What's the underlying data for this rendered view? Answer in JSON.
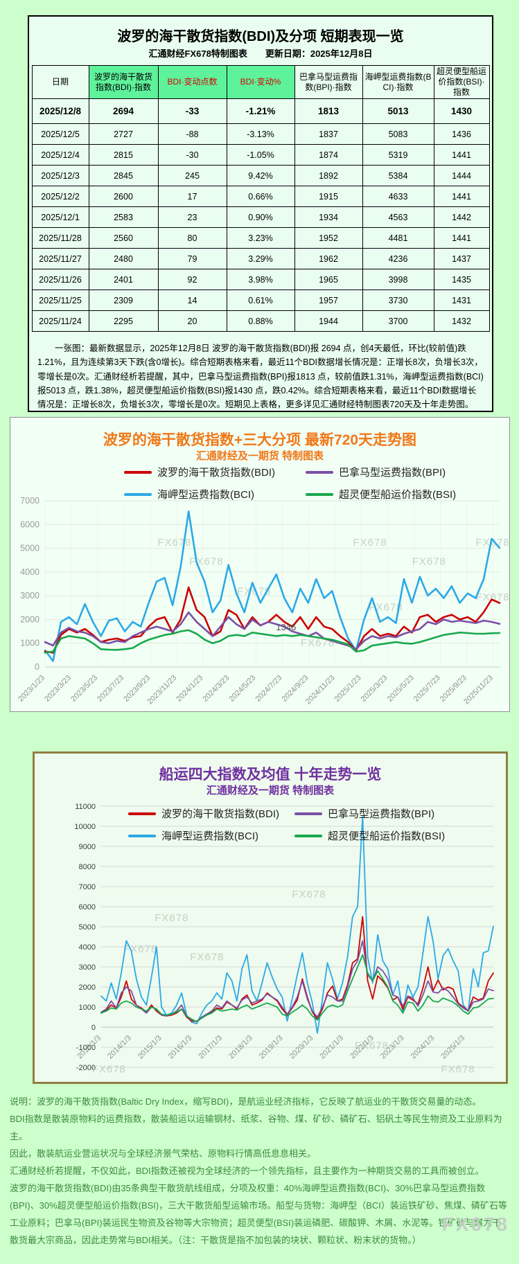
{
  "page": {
    "watermark": "FX678"
  },
  "colors": {
    "bdi": "#cc0000",
    "bpi": "#7b4fa6",
    "bci": "#2aa9e8",
    "bsi": "#17a84b",
    "accent_orange": "#f07818",
    "accent_purple": "#7030a0",
    "table_header_green": "#5ef29b",
    "red_header_text": "#d80000",
    "note_green": "#3c8a3c"
  },
  "table_panel": {
    "title": "波罗的海干散货指数(BDI)及分项 短期表现一览",
    "subtitle": "汇通财经FX678特制图表",
    "update_date": "更新日期：2025年12月8日",
    "note": "一张图：最新数据显示，2025年12月8日 波罗的海干散货指数(BDI)报 2694 点，创4天最低，环比(较前值)跌1.21%，且为连续第3天下跌(含0增长)。综合短期表格来看，最近11个BDI数据增长情况是：正增长8次，负增长3次，零增长是0次。汇通财经析若提醒，其中，巴拿马型运费指数(BPI)报1813 点，较前值跌1.31%，海岬型运费指数(BCI)报5013 点，跌1.38%，超灵便型船运价指数(BSI)报1430 点，跌0.42%。综合短期表格来看，最近11个BDI数据增长情况是：正增长8次，负增长3次，零增长是0次。短期见上表格，更多详见汇通财经特制图表720天及十年走势图。"
  },
  "chart_data": [
    {
      "id": "short-term-table",
      "type": "table",
      "columns": [
        "日期",
        "波罗的海干散货指数(BDI)·指数",
        "BDI·变动点数",
        "BDI·变动%",
        "巴拿马型运费指数(BPI)·指数",
        "海岬型运费指数(BCI)·指数",
        "超灵便型船运价指数(BSI)·指数"
      ],
      "rows": [
        [
          "2025/12/8",
          "2694",
          "-33",
          "-1.21%",
          "1813",
          "5013",
          "1430"
        ],
        [
          "2025/12/5",
          "2727",
          "-88",
          "-3.13%",
          "1837",
          "5083",
          "1436"
        ],
        [
          "2025/12/4",
          "2815",
          "-30",
          "-1.05%",
          "1874",
          "5319",
          "1441"
        ],
        [
          "2025/12/3",
          "2845",
          "245",
          "9.42%",
          "1892",
          "5384",
          "1444"
        ],
        [
          "2025/12/2",
          "2600",
          "17",
          "0.66%",
          "1915",
          "4633",
          "1441"
        ],
        [
          "2025/12/1",
          "2583",
          "23",
          "0.90%",
          "1934",
          "4563",
          "1442"
        ],
        [
          "2025/11/28",
          "2560",
          "80",
          "3.23%",
          "1952",
          "4481",
          "1441"
        ],
        [
          "2025/11/27",
          "2480",
          "79",
          "3.29%",
          "1962",
          "4236",
          "1437"
        ],
        [
          "2025/11/26",
          "2401",
          "92",
          "3.98%",
          "1965",
          "3998",
          "1435"
        ],
        [
          "2025/11/25",
          "2309",
          "14",
          "0.61%",
          "1957",
          "3730",
          "1431"
        ],
        [
          "2025/11/24",
          "2295",
          "20",
          "0.88%",
          "1944",
          "3700",
          "1432"
        ]
      ]
    },
    {
      "id": "chart720",
      "type": "line",
      "title": "波罗的海干散货指数+三大分项  最新720天走势图",
      "subtitle": "汇通财经及一期货 特制图表",
      "ylim": [
        0,
        7000
      ],
      "ytick_step": 1000,
      "grid": true,
      "legend_position": "top",
      "watermark": "FX678",
      "watermarks": [
        [
          0.285,
          0.27
        ],
        [
          0.715,
          0.27
        ],
        [
          0.985,
          0.27
        ],
        [
          0.355,
          0.385
        ],
        [
          0.845,
          0.385
        ],
        [
          0.46,
          0.565
        ],
        [
          0.75,
          0.66
        ],
        [
          0.6,
          0.875
        ],
        [
          0.985,
          0.6
        ]
      ],
      "xticks": [
        "2023/1/23",
        "2023/3/23",
        "2023/5/23",
        "2023/7/23",
        "2023/9/23",
        "2023/11/23",
        "2024/1/23",
        "2024/3/23",
        "2024/5/23",
        "2024/7/23",
        "2024/9/23",
        "2024/11/23",
        "2025/1/23",
        "2025/3/23",
        "2025/5/23",
        "2025/7/23",
        "2025/9/23",
        "2025/11/23"
      ],
      "xtick_fraction": 0.058,
      "annotation": {
        "series_index": 3,
        "point_index": 30,
        "text": "1346"
      },
      "series": [
        {
          "short": "BDI",
          "name": "波罗的海干散货指数(BDI)",
          "color_key": "bdi",
          "values": [
            650,
            600,
            1350,
            1600,
            1450,
            1600,
            1350,
            1050,
            1150,
            1200,
            1100,
            1250,
            1300,
            1700,
            2000,
            2100,
            1450,
            2000,
            3350,
            2400,
            2100,
            1300,
            1500,
            2400,
            2200,
            1600,
            2100,
            1750,
            1900,
            2200,
            1900,
            1700,
            2100,
            1600,
            2100,
            1700,
            1600,
            1300,
            1050,
            700,
            1300,
            1600,
            1300,
            1400,
            1300,
            1700,
            1450,
            2100,
            2200,
            1900,
            2100,
            2200,
            2000,
            2100,
            1900,
            2300,
            2845,
            2694
          ]
        },
        {
          "short": "BPI",
          "name": "巴拿马型运费指数(BPI)",
          "color_key": "bpi",
          "values": [
            1050,
            900,
            1450,
            1650,
            1500,
            1450,
            1300,
            1050,
            1000,
            1100,
            1050,
            1300,
            1450,
            1600,
            1700,
            1600,
            1500,
            1800,
            2300,
            1900,
            1600,
            1300,
            1700,
            2100,
            1800,
            1600,
            2000,
            1750,
            1900,
            1800,
            1700,
            1500,
            1400,
            1300,
            1450,
            1200,
            1100,
            1000,
            900,
            750,
            1100,
            1300,
            1200,
            1300,
            1250,
            1400,
            1500,
            1600,
            1900,
            1800,
            2000,
            1900,
            1950,
            1900,
            1850,
            1950,
            1900,
            1813
          ]
        },
        {
          "short": "BCI",
          "name": "海岬型运费指数(BCI)",
          "color_key": "bci",
          "values": [
            700,
            250,
            1900,
            2100,
            1800,
            2650,
            1900,
            1300,
            1950,
            2050,
            1500,
            1900,
            1700,
            2700,
            3600,
            3750,
            2600,
            4200,
            6550,
            4400,
            3600,
            2300,
            2800,
            4300,
            3100,
            2300,
            3550,
            2700,
            3300,
            3900,
            2900,
            2300,
            3300,
            2700,
            3700,
            2900,
            3200,
            2100,
            1200,
            700,
            2000,
            2900,
            1900,
            2100,
            1850,
            3700,
            2700,
            3800,
            3000,
            3300,
            2900,
            3400,
            2700,
            3100,
            2900,
            3700,
            5400,
            5013
          ]
        },
        {
          "short": "BSI",
          "name": "超灵便型船运价指数(BSI)",
          "color_key": "bsi",
          "values": [
            600,
            650,
            1200,
            1300,
            1250,
            1200,
            1000,
            750,
            730,
            720,
            750,
            800,
            1000,
            1150,
            1250,
            1350,
            1400,
            1500,
            1550,
            1400,
            1150,
            1000,
            1100,
            1300,
            1350,
            1300,
            1450,
            1400,
            1350,
            1300,
            1346,
            1300,
            1350,
            1300,
            1250,
            1200,
            1150,
            1050,
            950,
            650,
            700,
            900,
            950,
            1000,
            1050,
            1000,
            980,
            1050,
            1150,
            1250,
            1350,
            1400,
            1450,
            1430,
            1400,
            1400,
            1420,
            1430
          ]
        }
      ]
    },
    {
      "id": "chart10y",
      "type": "line",
      "title": "船运四大指数及均值 十年走势一览",
      "subtitle": "汇通财经及一期货 特制图表",
      "ylim": [
        -2000,
        11000
      ],
      "ytick_step": 1000,
      "grid": true,
      "legend_position": "top",
      "watermark": "FX678",
      "watermarks": [
        [
          0.18,
          0.44
        ],
        [
          0.1,
          0.56
        ],
        [
          0.27,
          0.59
        ],
        [
          0.53,
          0.35
        ],
        [
          0.69,
          0.93
        ],
        [
          0.02,
          1.02
        ],
        [
          0.91,
          1.02
        ]
      ],
      "xticks": [
        "2013/1/3",
        "2014/1/3",
        "2015/1/3",
        "2016/1/3",
        "2017/1/3",
        "2018/1/3",
        "2019/1/3",
        "2020/1/3",
        "2021/1/3",
        "2022/1/3",
        "2023/1/3",
        "2024/1/3",
        "2025/1/3"
      ],
      "xtick_fraction": 0.0773,
      "series": [
        {
          "short": "BDI",
          "name": "波罗的海干散货指数(BDI)",
          "color_key": "bdi",
          "values": [
            700,
            850,
            1100,
            950,
            1500,
            2300,
            1400,
            1100,
            950,
            750,
            1100,
            800,
            600,
            560,
            600,
            700,
            900,
            500,
            300,
            290,
            450,
            600,
            750,
            950,
            900,
            1250,
            1100,
            900,
            1400,
            1600,
            1100,
            1200,
            1350,
            1700,
            1500,
            1300,
            900,
            620,
            950,
            1350,
            2400,
            1500,
            750,
            400,
            900,
            1700,
            2050,
            1300,
            1400,
            2100,
            3200,
            3400,
            5500,
            2300,
            1400,
            2550,
            2300,
            1950,
            1350,
            1500,
            900,
            1500,
            1350,
            1150,
            1950,
            3000,
            1800,
            2350,
            1850,
            2000,
            1900,
            1200,
            1000,
            800,
            1500,
            1350,
            1450,
            2300,
            2694
          ]
        },
        {
          "short": "BPI",
          "name": "巴拿马型运费指数(BPI)",
          "color_key": "bpi",
          "values": [
            750,
            900,
            1300,
            950,
            1700,
            2000,
            1800,
            1100,
            900,
            700,
            1000,
            900,
            600,
            560,
            650,
            800,
            1100,
            550,
            350,
            290,
            500,
            650,
            800,
            1100,
            950,
            1300,
            1100,
            950,
            1350,
            1500,
            1200,
            1300,
            1400,
            1650,
            1500,
            1350,
            1000,
            650,
            1000,
            1500,
            2300,
            1400,
            800,
            500,
            1000,
            1600,
            1500,
            1300,
            1300,
            2000,
            2900,
            3300,
            4300,
            2600,
            2300,
            3000,
            2800,
            2400,
            1600,
            1500,
            1050,
            1550,
            1450,
            1050,
            1600,
            2300,
            1750,
            1700,
            1950,
            1800,
            1500,
            1150,
            950,
            800,
            1250,
            1300,
            1400,
            1900,
            1813
          ]
        },
        {
          "short": "BCI",
          "name": "海岬型运费指数(BCI)",
          "color_key": "bci",
          "values": [
            1550,
            1300,
            2200,
            1400,
            2700,
            4300,
            3800,
            2400,
            1500,
            1100,
            2500,
            4000,
            1000,
            600,
            700,
            1100,
            1700,
            600,
            250,
            170,
            700,
            1100,
            1300,
            1700,
            1400,
            2700,
            2300,
            1300,
            2900,
            3600,
            1800,
            1300,
            2200,
            3200,
            2500,
            1900,
            1500,
            300,
            1400,
            2600,
            3700,
            2200,
            1200,
            -300,
            1400,
            3200,
            2400,
            1400,
            2200,
            3500,
            5500,
            6000,
            10485,
            3500,
            2200,
            4600,
            3300,
            2900,
            1600,
            2300,
            700,
            2100,
            1500,
            2000,
            3700,
            5500,
            4300,
            2400,
            3550,
            3900,
            3300,
            2800,
            1100,
            800,
            2900,
            2000,
            3700,
            3800,
            5013
          ]
        },
        {
          "short": "BSI",
          "name": "超灵便型船运价指数(BSI)",
          "color_key": "bsi",
          "values": [
            700,
            800,
            950,
            900,
            1200,
            1300,
            1200,
            1000,
            900,
            800,
            1000,
            900,
            650,
            600,
            650,
            750,
            900,
            550,
            400,
            270,
            450,
            600,
            700,
            900,
            800,
            850,
            900,
            850,
            1000,
            1100,
            900,
            1000,
            1100,
            1200,
            1100,
            1000,
            650,
            550,
            750,
            900,
            1100,
            900,
            550,
            350,
            700,
            1000,
            1100,
            1000,
            1100,
            1800,
            2400,
            3000,
            3600,
            2700,
            2300,
            2800,
            2400,
            2000,
            1300,
            1100,
            700,
            1250,
            1200,
            800,
            1100,
            1550,
            1300,
            1250,
            1450,
            1350,
            1250,
            1050,
            800,
            650,
            950,
            1000,
            1200,
            1400,
            1430
          ]
        }
      ]
    }
  ],
  "footer_notes": [
    "说明：波罗的海干散货指数(Baltic Dry Index，缩写BDI)，是航运业经济指标，它反映了航运业的干散货交易量的动态。",
    "BDI指数是散装原物料的运费指数，散装船运以运输钢材、纸浆、谷物、煤、矿砂、磷矿石、铝矾土等民生物资及工业原料为主。",
    "因此，散装航运业营运状况与全球经济景气荣枯、原物料行情高低息息相关。",
    "汇通财经析若提醒，不仅如此，BDI指数还被视为全球经济的一个领先指标，且主要作为一种期货交易的工具而被创立。",
    "波罗的海干散货指数(BDI)由35条典型干散货航线组成，分项及权重：40%海岬型运费指数(BCI)、30%巴拿马型运费指数(BPI)、30%超灵便型船运价指数(BSI)，三大干散货船型运输市场。船型与货物：海岬型（BCI）装运铁矿砂、焦煤、磷矿石等工业原料；巴拿马(BPI)装运民生物资及谷物等大宗物资；超灵便型(BSI)装运磷肥、碳酸钾、木屑、水泥等。铁矿砂与煤为干散货最大宗商品，因此走势常与BDI相关。（注：干散货是指不加包装的块状、颗粒状、粉末状的货物。）"
  ]
}
